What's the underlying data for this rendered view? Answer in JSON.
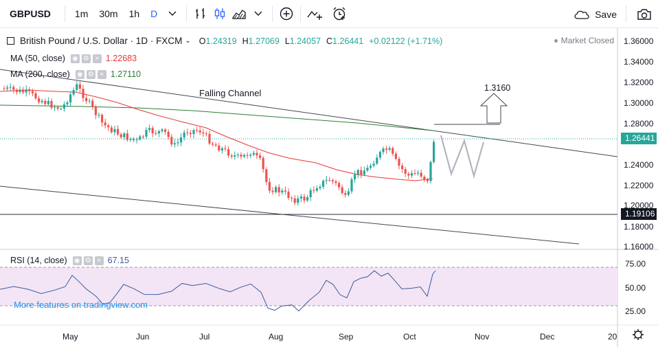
{
  "toolbar": {
    "symbol": "GBPUSD",
    "intervals": [
      "1m",
      "30m",
      "1h",
      "D"
    ],
    "save_label": "Save"
  },
  "legend": {
    "title": "British Pound / U.S. Dollar · 1D · FXCM",
    "open_label": "O",
    "open": "1.24319",
    "high_label": "H",
    "high": "1.27069",
    "low_label": "L",
    "low": "1.24057",
    "close_label": "C",
    "close": "1.26441",
    "change": "+0.02122 (+1.71%)",
    "market_status": "Market Closed",
    "ma50_label": "MA (50, close)",
    "ma50_value": "1.22683",
    "ma200_label": "MA (200, close)",
    "ma200_value": "1.27110",
    "rsi_label": "RSI (14, close)",
    "rsi_value": "67.15"
  },
  "annotations": {
    "channel_label": "Falling Channel",
    "target_label": "1.3160",
    "pattern_label": "W"
  },
  "price_axis": {
    "ticks": [
      "1.36000",
      "1.34000",
      "1.32000",
      "1.30000",
      "1.28000",
      "1.24000",
      "1.22000",
      "1.20000",
      "1.18000",
      "1.16000"
    ],
    "current_price": "1.26441",
    "support_price": "1.19106"
  },
  "rsi_axis": {
    "ticks": [
      "75.00",
      "50.00",
      "25.00"
    ]
  },
  "time_axis": {
    "labels": [
      "May",
      "Jun",
      "Jul",
      "Aug",
      "Sep",
      "Oct",
      "Nov",
      "Dec",
      "20"
    ]
  },
  "watermark": "More features on tradingview.com",
  "colors": {
    "up": "#26a69a",
    "down": "#ef5350",
    "ma50": "#e53935",
    "ma200": "#2e7d32",
    "rsi": "#3a5ba0",
    "rsi_band": "#f3e5f5"
  }
}
